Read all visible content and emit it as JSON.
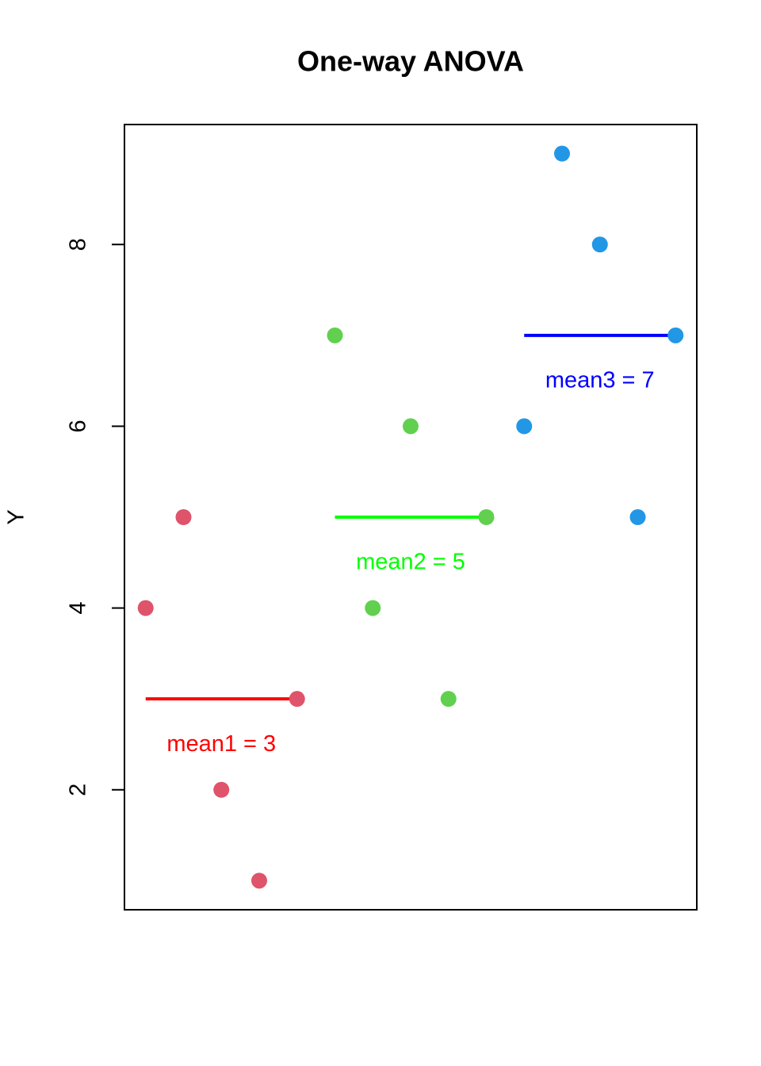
{
  "chart_data": {
    "type": "scatter",
    "title": "One-way ANOVA",
    "ylabel": "Y",
    "xlim": [
      0.44,
      15.56
    ],
    "ylim": [
      0.68,
      9.32
    ],
    "yticks": [
      2,
      4,
      6,
      8
    ],
    "series": [
      {
        "color": "#DF536B",
        "x": [
          1,
          2,
          3,
          4,
          5
        ],
        "values": [
          4,
          5,
          2,
          1,
          3
        ]
      },
      {
        "color": "#61D04F",
        "x": [
          6,
          7,
          8,
          9,
          10
        ],
        "values": [
          7,
          4,
          6,
          3,
          5
        ]
      },
      {
        "color": "#2297E6",
        "x": [
          11,
          12,
          13,
          14,
          15
        ],
        "values": [
          6,
          9,
          8,
          5,
          7
        ]
      }
    ],
    "mean_lines": [
      {
        "x": [
          1,
          5
        ],
        "value": 3,
        "color": "#FF0000",
        "label": "mean1 = 3"
      },
      {
        "x": [
          6,
          10
        ],
        "value": 5,
        "color": "#00FF00",
        "label": "mean2 = 5"
      },
      {
        "x": [
          11,
          15
        ],
        "value": 7,
        "color": "#0000FF",
        "label": "mean3 = 7"
      }
    ]
  }
}
